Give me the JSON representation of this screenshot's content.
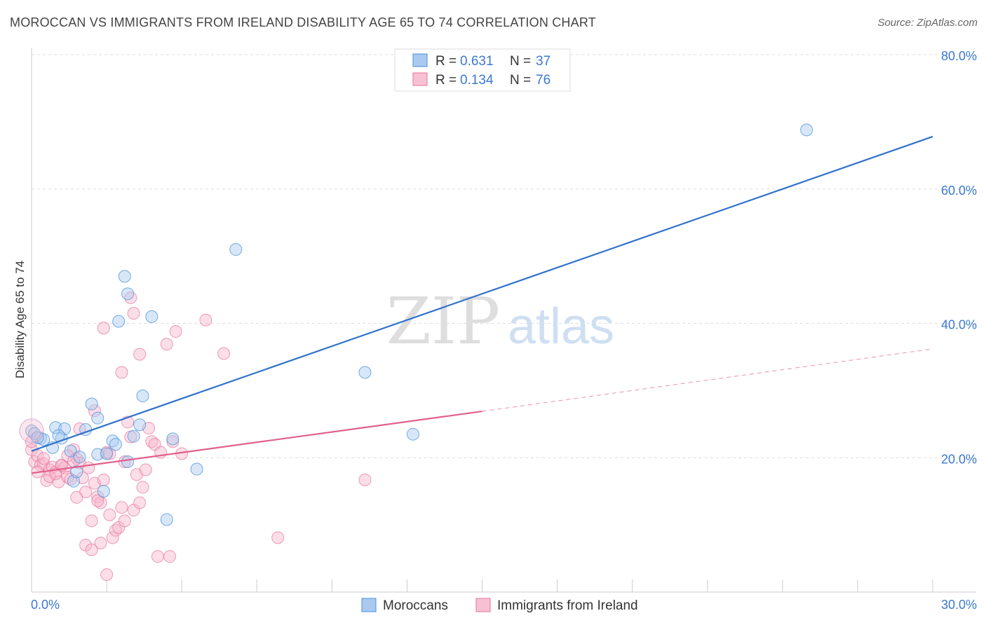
{
  "header": {
    "title": "MOROCCAN VS IMMIGRANTS FROM IRELAND DISABILITY AGE 65 TO 74 CORRELATION CHART",
    "source": "Source: ZipAtlas.com"
  },
  "watermark": {
    "zip": "ZIP",
    "atlas": "atlas"
  },
  "legend_box": {
    "rows": [
      {
        "r_label": "R = ",
        "r_value": "0.631",
        "n_label": "N = ",
        "n_value": "37"
      },
      {
        "r_label": "R = ",
        "r_value": "0.134",
        "n_label": "N = ",
        "n_value": "76"
      }
    ]
  },
  "colors": {
    "moroccans": "#4a90d9",
    "moroccans_fill": "#a9c9ef",
    "ireland": "#e8739a",
    "ireland_fill": "#f6b6cb",
    "value_text": "#3b78d0",
    "grid": "#dddddd"
  },
  "chart_data": {
    "type": "scatter",
    "ylabel": "Disability Age 65 to 74",
    "xlim": [
      0,
      30
    ],
    "ylim": [
      0,
      80
    ],
    "x_tick_labels": [
      "0.0%",
      "30.0%"
    ],
    "y_tick_labels": [
      "20.0%",
      "40.0%",
      "60.0%",
      "80.0%"
    ],
    "y_ticks": [
      20,
      40,
      60,
      80
    ],
    "series": [
      {
        "name": "Moroccans",
        "points": [
          [
            0.0,
            24.0
          ],
          [
            0.3,
            22.9
          ],
          [
            0.4,
            22.7
          ],
          [
            0.7,
            21.5
          ],
          [
            0.8,
            24.5
          ],
          [
            1.0,
            22.9
          ],
          [
            1.1,
            24.3
          ],
          [
            1.3,
            21.0
          ],
          [
            1.4,
            16.5
          ],
          [
            1.5,
            17.9
          ],
          [
            1.6,
            20.1
          ],
          [
            1.8,
            24.2
          ],
          [
            2.0,
            28.0
          ],
          [
            2.2,
            25.9
          ],
          [
            2.2,
            20.5
          ],
          [
            2.4,
            15.0
          ],
          [
            2.5,
            20.6
          ],
          [
            2.7,
            22.5
          ],
          [
            2.8,
            22.0
          ],
          [
            2.9,
            40.3
          ],
          [
            3.1,
            47.0
          ],
          [
            3.2,
            44.4
          ],
          [
            3.2,
            19.4
          ],
          [
            3.4,
            23.2
          ],
          [
            3.6,
            24.9
          ],
          [
            3.7,
            29.2
          ],
          [
            4.0,
            41.0
          ],
          [
            4.5,
            10.8
          ],
          [
            4.7,
            22.8
          ],
          [
            5.5,
            18.3
          ],
          [
            6.8,
            51.0
          ],
          [
            11.1,
            32.7
          ],
          [
            12.7,
            23.5
          ],
          [
            25.8,
            68.8
          ],
          [
            0.1,
            23.6
          ],
          [
            0.2,
            23.0
          ],
          [
            0.9,
            23.3
          ]
        ],
        "trend": {
          "x": [
            0.0,
            30.0
          ],
          "y": [
            21.0,
            67.8
          ]
        }
      },
      {
        "name": "Immigrants from Ireland",
        "points": [
          [
            0.0,
            21.2
          ],
          [
            0.1,
            19.4
          ],
          [
            0.2,
            20.3
          ],
          [
            0.3,
            18.9
          ],
          [
            0.4,
            19.1
          ],
          [
            0.5,
            16.6
          ],
          [
            0.6,
            18.2
          ],
          [
            0.7,
            18.6
          ],
          [
            0.8,
            17.9
          ],
          [
            0.9,
            16.4
          ],
          [
            1.0,
            18.8
          ],
          [
            1.1,
            18.5
          ],
          [
            1.2,
            17.1
          ],
          [
            1.3,
            16.8
          ],
          [
            1.4,
            21.2
          ],
          [
            1.5,
            19.9
          ],
          [
            1.6,
            19.2
          ],
          [
            1.7,
            17.0
          ],
          [
            1.8,
            14.9
          ],
          [
            1.9,
            18.5
          ],
          [
            2.0,
            10.6
          ],
          [
            2.1,
            16.2
          ],
          [
            2.2,
            14.2
          ],
          [
            2.3,
            13.3
          ],
          [
            2.4,
            16.7
          ],
          [
            2.5,
            20.8
          ],
          [
            2.6,
            11.5
          ],
          [
            2.7,
            8.1
          ],
          [
            2.8,
            9.2
          ],
          [
            2.9,
            9.6
          ],
          [
            3.0,
            12.6
          ],
          [
            3.1,
            10.6
          ],
          [
            3.2,
            25.3
          ],
          [
            3.3,
            23.1
          ],
          [
            3.4,
            12.2
          ],
          [
            3.5,
            17.5
          ],
          [
            3.6,
            13.3
          ],
          [
            3.7,
            15.6
          ],
          [
            3.8,
            18.2
          ],
          [
            3.9,
            24.4
          ],
          [
            4.0,
            22.4
          ],
          [
            4.1,
            22.0
          ],
          [
            4.2,
            5.3
          ],
          [
            4.3,
            20.8
          ],
          [
            4.5,
            36.9
          ],
          [
            4.7,
            22.4
          ],
          [
            4.8,
            38.8
          ],
          [
            5.0,
            20.6
          ],
          [
            2.4,
            39.3
          ],
          [
            3.0,
            32.7
          ],
          [
            3.6,
            35.4
          ],
          [
            3.3,
            43.8
          ],
          [
            3.4,
            41.5
          ],
          [
            5.8,
            40.5
          ],
          [
            6.4,
            35.5
          ],
          [
            8.2,
            8.1
          ],
          [
            11.1,
            16.7
          ],
          [
            2.1,
            27.0
          ],
          [
            1.6,
            24.3
          ],
          [
            2.3,
            7.3
          ],
          [
            1.8,
            7.0
          ],
          [
            2.0,
            6.3
          ],
          [
            2.5,
            2.6
          ],
          [
            4.6,
            5.3
          ],
          [
            0.2,
            17.9
          ],
          [
            0.6,
            17.2
          ],
          [
            1.0,
            18.9
          ],
          [
            1.5,
            14.1
          ],
          [
            2.2,
            13.6
          ],
          [
            0.4,
            19.9
          ],
          [
            0.8,
            17.6
          ],
          [
            1.2,
            20.3
          ],
          [
            1.4,
            19.5
          ],
          [
            2.6,
            20.6
          ],
          [
            3.1,
            19.4
          ],
          [
            0.0,
            22.4
          ]
        ],
        "trend_solid": {
          "x": [
            0.0,
            15.0
          ],
          "y": [
            17.7,
            26.9
          ]
        },
        "trend_dashed": {
          "x": [
            15.0,
            30.0
          ],
          "y": [
            26.9,
            36.2
          ]
        }
      }
    ],
    "legend": {
      "placement": "bottom-center",
      "items": [
        "Moroccans",
        "Immigrants from Ireland"
      ]
    },
    "grid": true
  }
}
